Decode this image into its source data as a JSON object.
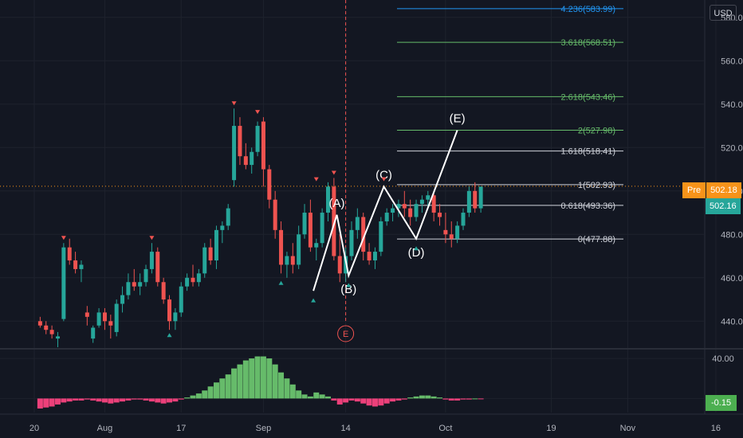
{
  "currency": "USD",
  "pre_label": "Pre",
  "pre_value": "502.18",
  "last_value": "502.16",
  "osc_value": "-0.15",
  "event_marker": "E",
  "colors": {
    "up": "#26a69a",
    "down": "#ef5350",
    "bg": "#131722",
    "grid": "#1e222d",
    "osc_up": "#66bb6a",
    "osc_down": "#ec407a"
  },
  "chart_data": {
    "type": "candlestick",
    "price_axis_labels": [
      "580.00",
      "560.00",
      "540.00",
      "520.00",
      "500.00",
      "480.00",
      "460.00",
      "440.00"
    ],
    "price_ticks": [
      580,
      560,
      540,
      520,
      500,
      480,
      460,
      440
    ],
    "osc_axis_labels": [
      "40.00",
      "0.00"
    ],
    "osc_ticks": [
      40,
      0
    ],
    "x_ticks": [
      {
        "label": "20",
        "d": 0
      },
      {
        "label": "Aug",
        "d": 12
      },
      {
        "label": "17",
        "d": 25
      },
      {
        "label": "Sep",
        "d": 39
      },
      {
        "label": "14",
        "d": 53
      },
      {
        "label": "Oct",
        "d": 70
      },
      {
        "label": "19",
        "d": 88
      },
      {
        "label": "Nov",
        "d": 101
      },
      {
        "label": "16",
        "d": 116
      }
    ],
    "candles": [
      [
        1,
        440,
        442,
        437,
        438
      ],
      [
        2,
        438,
        440,
        434,
        436
      ],
      [
        3,
        436,
        438,
        432,
        434
      ],
      [
        4,
        432,
        435,
        428,
        433
      ],
      [
        5,
        441,
        476,
        440,
        474
      ],
      [
        6,
        474,
        478,
        466,
        468
      ],
      [
        7,
        468,
        472,
        462,
        464
      ],
      [
        8,
        464,
        468,
        458,
        466
      ],
      [
        9,
        444,
        447,
        438,
        442
      ],
      [
        10,
        432,
        438,
        430,
        437
      ],
      [
        11,
        438,
        446,
        437,
        444
      ],
      [
        12,
        444,
        446,
        436,
        440
      ],
      [
        13,
        440,
        443,
        432,
        438
      ],
      [
        14,
        435,
        450,
        433,
        448
      ],
      [
        15,
        448,
        456,
        444,
        452
      ],
      [
        16,
        452,
        462,
        450,
        458
      ],
      [
        17,
        458,
        464,
        454,
        456
      ],
      [
        18,
        456,
        462,
        452,
        458
      ],
      [
        19,
        458,
        466,
        456,
        464
      ],
      [
        20,
        464,
        476,
        462,
        472
      ],
      [
        21,
        472,
        474,
        456,
        458
      ],
      [
        22,
        458,
        460,
        448,
        450
      ],
      [
        23,
        450,
        452,
        436,
        440
      ],
      [
        24,
        440,
        446,
        436,
        444
      ],
      [
        25,
        444,
        458,
        442,
        456
      ],
      [
        26,
        456,
        462,
        454,
        460
      ],
      [
        27,
        460,
        466,
        456,
        458
      ],
      [
        28,
        458,
        464,
        456,
        462
      ],
      [
        29,
        462,
        476,
        460,
        474
      ],
      [
        30,
        474,
        478,
        466,
        468
      ],
      [
        31,
        468,
        484,
        464,
        482
      ],
      [
        32,
        482,
        486,
        476,
        484
      ],
      [
        33,
        484,
        494,
        482,
        492
      ],
      [
        34,
        505,
        538,
        502,
        530
      ],
      [
        35,
        530,
        534,
        512,
        516
      ],
      [
        36,
        516,
        522,
        510,
        512
      ],
      [
        37,
        512,
        520,
        508,
        518
      ],
      [
        38,
        518,
        532,
        516,
        530
      ],
      [
        39,
        532,
        534,
        502,
        510
      ],
      [
        40,
        510,
        512,
        492,
        496
      ],
      [
        41,
        496,
        500,
        478,
        482
      ],
      [
        42,
        482,
        486,
        462,
        466
      ],
      [
        43,
        466,
        472,
        460,
        470
      ],
      [
        44,
        470,
        476,
        462,
        466
      ],
      [
        45,
        466,
        484,
        464,
        480
      ],
      [
        46,
        480,
        494,
        478,
        490
      ],
      [
        47,
        490,
        496,
        472,
        474
      ],
      [
        48,
        474,
        478,
        468,
        476
      ],
      [
        49,
        476,
        492,
        474,
        490
      ],
      [
        50,
        490,
        504,
        486,
        502
      ],
      [
        51,
        502,
        506,
        468,
        470
      ],
      [
        52,
        470,
        480,
        458,
        462
      ],
      [
        53,
        462,
        474,
        458,
        470
      ],
      [
        54,
        470,
        486,
        468,
        482
      ],
      [
        55,
        482,
        492,
        478,
        488
      ],
      [
        56,
        488,
        490,
        468,
        472
      ],
      [
        57,
        472,
        476,
        466,
        468
      ],
      [
        58,
        468,
        474,
        464,
        472
      ],
      [
        59,
        472,
        488,
        470,
        486
      ],
      [
        60,
        486,
        492,
        484,
        490
      ],
      [
        61,
        490,
        494,
        486,
        492
      ],
      [
        62,
        492,
        496,
        488,
        494
      ],
      [
        63,
        494,
        500,
        488,
        492
      ],
      [
        64,
        492,
        496,
        484,
        488
      ],
      [
        65,
        488,
        496,
        486,
        494
      ],
      [
        66,
        494,
        498,
        490,
        496
      ],
      [
        67,
        496,
        500,
        492,
        498
      ],
      [
        68,
        498,
        500,
        486,
        490
      ],
      [
        69,
        490,
        494,
        484,
        488
      ],
      [
        70,
        482,
        490,
        476,
        480
      ],
      [
        71,
        480,
        486,
        474,
        478
      ],
      [
        72,
        478,
        486,
        476,
        484
      ],
      [
        73,
        484,
        492,
        482,
        490
      ],
      [
        74,
        490,
        502,
        488,
        500
      ],
      [
        75,
        500,
        504,
        490,
        492
      ],
      [
        76,
        492,
        502,
        490,
        502
      ]
    ],
    "osc_bars": [
      [
        1,
        -10
      ],
      [
        2,
        -9
      ],
      [
        3,
        -8
      ],
      [
        4,
        -6
      ],
      [
        5,
        -4
      ],
      [
        6,
        -3
      ],
      [
        7,
        -2
      ],
      [
        8,
        -2
      ],
      [
        9,
        -1
      ],
      [
        10,
        -2
      ],
      [
        11,
        -3
      ],
      [
        12,
        -4
      ],
      [
        13,
        -5
      ],
      [
        14,
        -4
      ],
      [
        15,
        -3
      ],
      [
        16,
        -2
      ],
      [
        17,
        -1
      ],
      [
        18,
        -1
      ],
      [
        19,
        -2
      ],
      [
        20,
        -3
      ],
      [
        21,
        -4
      ],
      [
        22,
        -5
      ],
      [
        23,
        -4
      ],
      [
        24,
        -3
      ],
      [
        25,
        -1
      ],
      [
        26,
        1
      ],
      [
        27,
        3
      ],
      [
        28,
        5
      ],
      [
        29,
        8
      ],
      [
        30,
        12
      ],
      [
        31,
        16
      ],
      [
        32,
        20
      ],
      [
        33,
        24
      ],
      [
        34,
        30
      ],
      [
        35,
        34
      ],
      [
        36,
        38
      ],
      [
        37,
        40
      ],
      [
        38,
        42
      ],
      [
        39,
        42
      ],
      [
        40,
        40
      ],
      [
        41,
        34
      ],
      [
        42,
        26
      ],
      [
        43,
        20
      ],
      [
        44,
        14
      ],
      [
        45,
        8
      ],
      [
        46,
        4
      ],
      [
        47,
        2
      ],
      [
        48,
        6
      ],
      [
        49,
        4
      ],
      [
        50,
        2
      ],
      [
        51,
        -2
      ],
      [
        52,
        -6
      ],
      [
        53,
        -4
      ],
      [
        54,
        -2
      ],
      [
        55,
        -3
      ],
      [
        56,
        -5
      ],
      [
        57,
        -7
      ],
      [
        58,
        -8
      ],
      [
        59,
        -7
      ],
      [
        60,
        -5
      ],
      [
        61,
        -3
      ],
      [
        62,
        -2
      ],
      [
        63,
        -1
      ],
      [
        64,
        1
      ],
      [
        65,
        2
      ],
      [
        66,
        3
      ],
      [
        67,
        3
      ],
      [
        68,
        2
      ],
      [
        69,
        1
      ],
      [
        70,
        -1
      ],
      [
        71,
        -2
      ],
      [
        72,
        -2
      ],
      [
        73,
        -1
      ],
      [
        74,
        -1
      ],
      [
        75,
        0
      ],
      [
        76,
        -0.15
      ]
    ],
    "fib_levels": [
      {
        "label": "4.236(583.99)",
        "value": 583.99,
        "color": "#2196f3"
      },
      {
        "label": "3.618(568.51)",
        "value": 568.51,
        "color": "#66bb6a"
      },
      {
        "label": "2.618(543.46)",
        "value": 543.46,
        "color": "#66bb6a"
      },
      {
        "label": "2(527.98)",
        "value": 527.98,
        "color": "#66bb6a"
      },
      {
        "label": "1.618(518.41)",
        "value": 518.41,
        "color": "#d1d4dc"
      },
      {
        "label": "1(502.93)",
        "value": 502.93,
        "color": "#d1d4dc"
      },
      {
        "label": "0.618(493.36)",
        "value": 493.36,
        "color": "#d1d4dc"
      },
      {
        "label": "0(477.88)",
        "value": 477.88,
        "color": "#d1d4dc"
      }
    ],
    "wave": [
      {
        "label": "",
        "d": 47.5,
        "y": 454
      },
      {
        "label": "(A)",
        "d": 51.5,
        "y": 489
      },
      {
        "label": "(B)",
        "d": 53.5,
        "y": 461
      },
      {
        "label": "(C)",
        "d": 59.5,
        "y": 502
      },
      {
        "label": "(D)",
        "d": 65,
        "y": 478
      },
      {
        "label": "(E)",
        "d": 72,
        "y": 528
      }
    ],
    "markers": [
      {
        "d": 5,
        "y": 476,
        "dir": "down"
      },
      {
        "d": 20,
        "y": 476,
        "dir": "down"
      },
      {
        "d": 34,
        "y": 538,
        "dir": "down"
      },
      {
        "d": 38,
        "y": 534,
        "dir": "down"
      },
      {
        "d": 48,
        "y": 503,
        "dir": "down"
      },
      {
        "d": 51,
        "y": 506,
        "dir": "down"
      },
      {
        "d": 59.5,
        "y": 503,
        "dir": "down"
      },
      {
        "d": 23,
        "y": 436,
        "dir": "up"
      },
      {
        "d": 42,
        "y": 460,
        "dir": "up"
      },
      {
        "d": 47.5,
        "y": 452,
        "dir": "up"
      },
      {
        "d": 53.5,
        "y": 459,
        "dir": "up"
      },
      {
        "d": 65,
        "y": 476,
        "dir": "up"
      }
    ],
    "last_price": 502.16,
    "pre_price": 502.18,
    "event_d": 53,
    "ylim": [
      428,
      588
    ],
    "osc_ylim": [
      -14,
      48
    ]
  }
}
